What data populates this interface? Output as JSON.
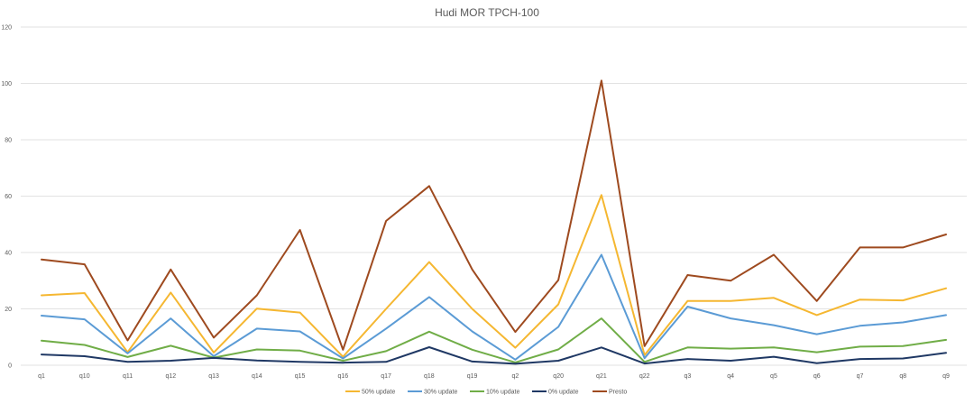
{
  "chart_data": {
    "type": "line",
    "title": "Hudi MOR TPCH-100",
    "xlabel": "",
    "ylabel": "",
    "ylim": [
      0,
      120
    ],
    "yticks": [
      0,
      20,
      40,
      60,
      80,
      100,
      120
    ],
    "grid": true,
    "legend_position": "bottom",
    "categories": [
      "q1",
      "q10",
      "q11",
      "q12",
      "q13",
      "q14",
      "q15",
      "q16",
      "q17",
      "q18",
      "q19",
      "q2",
      "q20",
      "q21",
      "q22",
      "q3",
      "q4",
      "q5",
      "q6",
      "q7",
      "q8",
      "q9"
    ],
    "series": [
      {
        "name": "Presto",
        "color": "#9e4a1f",
        "values": [
          37.5,
          35.8,
          8.8,
          34,
          9.8,
          24.8,
          48,
          5.5,
          51.2,
          63.6,
          34,
          11.8,
          30.2,
          101,
          6.8,
          32,
          30,
          39.2,
          22.8,
          41.8,
          41.8,
          46.4
        ]
      },
      {
        "name": "50% update",
        "color": "#f5b731",
        "values": [
          24.8,
          25.6,
          4.6,
          25.8,
          4.5,
          20.1,
          18.7,
          3.0,
          20.0,
          36.6,
          20.0,
          6.2,
          21.6,
          60.4,
          3.6,
          22.8,
          22.8,
          23.9,
          17.8,
          23.3,
          23.0,
          27.3
        ]
      },
      {
        "name": "30% update",
        "color": "#5b9bd5",
        "values": [
          17.6,
          16.3,
          4.2,
          16.6,
          3.2,
          13.0,
          12.0,
          2.4,
          13.0,
          24.2,
          12.0,
          2.0,
          13.6,
          39.2,
          2.5,
          20.8,
          16.6,
          14.2,
          11.0,
          14.0,
          15.2,
          17.8
        ]
      },
      {
        "name": "10% update",
        "color": "#70ad47",
        "values": [
          8.7,
          7.2,
          2.9,
          6.9,
          2.7,
          5.6,
          5.2,
          1.6,
          5.0,
          11.9,
          5.5,
          1.0,
          5.6,
          16.6,
          1.2,
          6.3,
          5.9,
          6.3,
          4.6,
          6.6,
          6.8,
          9.0
        ]
      },
      {
        "name": "0% update",
        "color": "#1f3864",
        "values": [
          3.8,
          3.2,
          1.2,
          1.6,
          2.6,
          1.7,
          1.2,
          0.9,
          1.2,
          6.4,
          1.3,
          0.5,
          1.6,
          6.3,
          0.6,
          2.2,
          1.6,
          3.0,
          0.7,
          2.2,
          2.4,
          4.4
        ]
      }
    ],
    "legend_order": [
      "50% update",
      "30% update",
      "10% update",
      "0% update",
      "Presto"
    ]
  }
}
